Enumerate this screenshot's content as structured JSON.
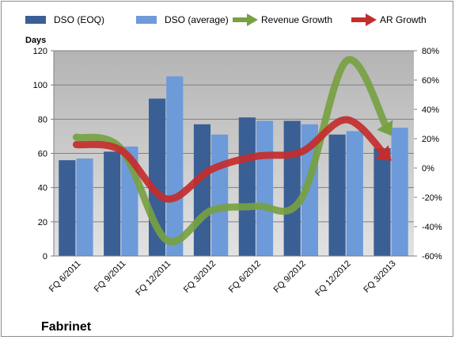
{
  "company": "Fabrinet",
  "chart_data": {
    "type": "bar",
    "ylabel": "Days",
    "categories": [
      "FQ 6/2011",
      "FQ 9/2011",
      "FQ 12/2011",
      "FQ 3/2012",
      "FQ 6/2012",
      "FQ 9/2012",
      "FQ 12/2012",
      "FQ 3/2013"
    ],
    "ylim": [
      0,
      120
    ],
    "yticks": [
      "0",
      "20",
      "40",
      "60",
      "80",
      "100",
      "120"
    ],
    "y2lim": [
      -60,
      80
    ],
    "y2ticks": [
      "-60%",
      "-40%",
      "-20%",
      "0%",
      "20%",
      "40%",
      "60%",
      "80%"
    ],
    "grid": true,
    "legend_position": "top",
    "series": [
      {
        "name": "DSO (EOQ)",
        "type": "bar",
        "color": "#3a5f95",
        "values": [
          56,
          61,
          92,
          77,
          81,
          79,
          71,
          63
        ]
      },
      {
        "name": "DSO (average)",
        "type": "bar",
        "color": "#6d9ad9",
        "values": [
          57,
          64,
          105,
          71,
          79,
          77,
          73,
          75
        ]
      },
      {
        "name": "Revenue Growth",
        "type": "line",
        "axis": "right",
        "color": "#77a142",
        "values": [
          21,
          13,
          -49,
          -29,
          -26,
          -21,
          73,
          22
        ]
      },
      {
        "name": "AR Growth",
        "type": "line",
        "axis": "right",
        "color": "#c42d2d",
        "values": [
          16,
          12,
          -21,
          -1,
          8,
          11,
          33,
          5
        ]
      }
    ]
  }
}
